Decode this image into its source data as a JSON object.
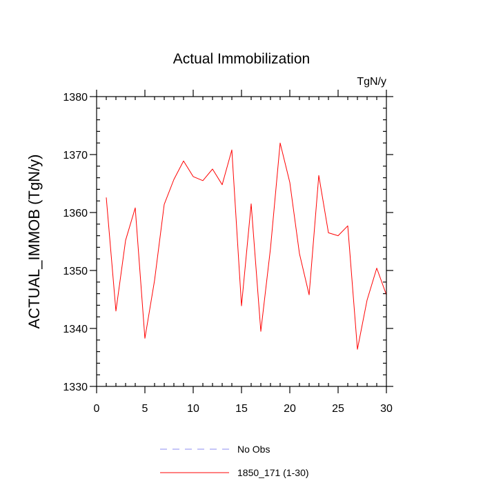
{
  "chart_data": {
    "type": "line",
    "title": "Actual Immobilization",
    "units": "TgN/y",
    "ylabel": "ACTUAL_IMMOB  (TgN/y)",
    "xlabel": "",
    "xlim": [
      0,
      30
    ],
    "ylim": [
      1330,
      1380
    ],
    "xticks": [
      0,
      5,
      10,
      15,
      20,
      25,
      30
    ],
    "yticks": [
      1330,
      1340,
      1350,
      1360,
      1370,
      1380
    ],
    "xtick_labels": [
      "0",
      "5",
      "10",
      "15",
      "20",
      "25",
      "30"
    ],
    "ytick_labels": [
      "1330",
      "1340",
      "1350",
      "1360",
      "1370",
      "1380"
    ],
    "x_minor_step": 1,
    "y_minor_step": 2,
    "series": [
      {
        "name": "No Obs",
        "color": "#8c8cf0",
        "style": "dashed",
        "x": [],
        "values": []
      },
      {
        "name": "1850_171 (1-30)",
        "color": "#ff0000",
        "style": "solid",
        "x": [
          1,
          2,
          3,
          4,
          5,
          6,
          7,
          8,
          9,
          10,
          11,
          12,
          13,
          14,
          15,
          16,
          17,
          18,
          19,
          20,
          21,
          22,
          23,
          24,
          25,
          26,
          27,
          28,
          29,
          30
        ],
        "values": [
          1362.6,
          1343.0,
          1355.2,
          1360.8,
          1338.3,
          1348.3,
          1361.4,
          1365.7,
          1368.9,
          1366.2,
          1365.5,
          1367.5,
          1364.8,
          1370.8,
          1343.9,
          1361.5,
          1339.5,
          1353.8,
          1372.0,
          1365.2,
          1352.9,
          1345.8,
          1366.4,
          1356.5,
          1356.0,
          1357.7,
          1336.4,
          1344.9,
          1350.4,
          1345.8
        ]
      }
    ],
    "legend": [
      {
        "label": "No Obs",
        "color": "#8c8cf0",
        "style": "dashed"
      },
      {
        "label": "1850_171 (1-30)",
        "color": "#ff0000",
        "style": "solid"
      }
    ]
  }
}
